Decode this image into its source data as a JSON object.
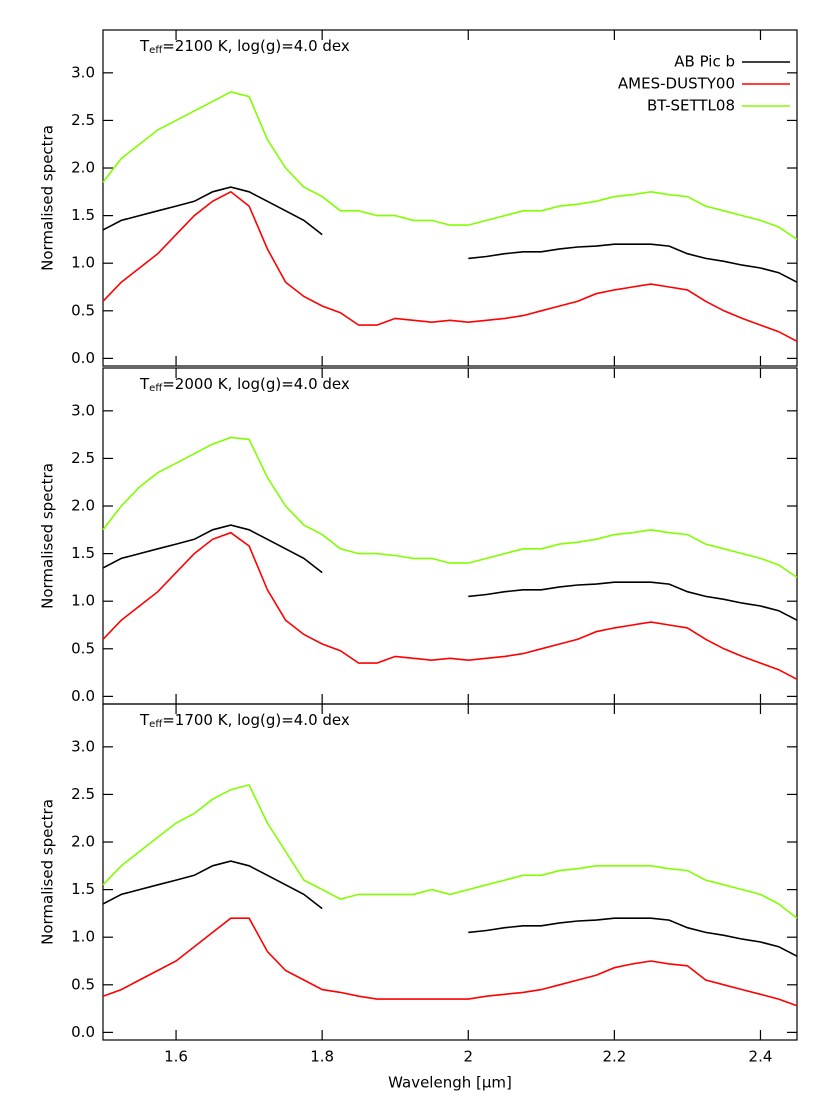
{
  "chart_data": [
    {
      "type": "line",
      "title": {
        "main": "T",
        "sub": "eff",
        "rest": "=2100 K, log(g)=4.0 dex"
      },
      "y_label": "Normalised spectra",
      "x": [
        1.5,
        1.525,
        1.55,
        1.575,
        1.6,
        1.625,
        1.65,
        1.675,
        1.7,
        1.725,
        1.75,
        1.775,
        1.8,
        1.825,
        1.85,
        1.875,
        1.9,
        1.925,
        1.95,
        1.975,
        2.0,
        2.025,
        2.05,
        2.075,
        2.1,
        2.125,
        2.15,
        2.175,
        2.2,
        2.225,
        2.25,
        2.275,
        2.3,
        2.325,
        2.35,
        2.375,
        2.4,
        2.425,
        2.45
      ],
      "series": [
        {
          "name": "AB Pic b",
          "color": "#000000",
          "values": [
            1.35,
            1.45,
            1.5,
            1.55,
            1.6,
            1.65,
            1.75,
            1.8,
            1.75,
            1.65,
            1.55,
            1.45,
            1.3,
            null,
            null,
            null,
            null,
            null,
            null,
            null,
            1.05,
            1.07,
            1.1,
            1.12,
            1.12,
            1.15,
            1.17,
            1.18,
            1.2,
            1.2,
            1.2,
            1.18,
            1.1,
            1.05,
            1.02,
            0.98,
            0.95,
            0.9,
            0.8
          ]
        },
        {
          "name": "AMES-DUSTY00",
          "color": "#ff0000",
          "values": [
            0.6,
            0.8,
            0.95,
            1.1,
            1.3,
            1.5,
            1.65,
            1.75,
            1.6,
            1.15,
            0.8,
            0.65,
            0.55,
            0.48,
            0.35,
            0.35,
            0.42,
            0.4,
            0.38,
            0.4,
            0.38,
            0.4,
            0.42,
            0.45,
            0.5,
            0.55,
            0.6,
            0.68,
            0.72,
            0.75,
            0.78,
            0.75,
            0.72,
            0.6,
            0.5,
            0.42,
            0.35,
            0.28,
            0.18
          ]
        },
        {
          "name": "BT-SETTL08",
          "color": "#80ff00",
          "values": [
            1.85,
            2.1,
            2.25,
            2.4,
            2.5,
            2.6,
            2.7,
            2.8,
            2.75,
            2.3,
            2.0,
            1.8,
            1.7,
            1.55,
            1.55,
            1.5,
            1.5,
            1.45,
            1.45,
            1.4,
            1.4,
            1.45,
            1.5,
            1.55,
            1.55,
            1.6,
            1.62,
            1.65,
            1.7,
            1.72,
            1.75,
            1.72,
            1.7,
            1.6,
            1.55,
            1.5,
            1.45,
            1.38,
            1.25
          ]
        }
      ],
      "legend": "top-right",
      "xlim": [
        1.5,
        2.45
      ],
      "ylim": [
        -0.08,
        3.45
      ],
      "xticks": [
        1.6,
        1.8,
        2.0,
        2.2,
        2.4
      ],
      "yticks": [
        {
          "value": 0,
          "label": "0.0"
        },
        {
          "value": 0.5,
          "label": "0.5"
        },
        {
          "value": 1,
          "label": "1.0"
        },
        {
          "value": 1.5,
          "label": "1.5"
        },
        {
          "value": 2,
          "label": "2.0"
        },
        {
          "value": 2.5,
          "label": "2.5"
        },
        {
          "value": 3,
          "label": "3.0"
        }
      ]
    },
    {
      "type": "line",
      "title": {
        "main": "T",
        "sub": "eff",
        "rest": "=2000 K, log(g)=4.0 dex"
      },
      "y_label": "Normalised spectra",
      "x": [
        1.5,
        1.525,
        1.55,
        1.575,
        1.6,
        1.625,
        1.65,
        1.675,
        1.7,
        1.725,
        1.75,
        1.775,
        1.8,
        1.825,
        1.85,
        1.875,
        1.9,
        1.925,
        1.95,
        1.975,
        2.0,
        2.025,
        2.05,
        2.075,
        2.1,
        2.125,
        2.15,
        2.175,
        2.2,
        2.225,
        2.25,
        2.275,
        2.3,
        2.325,
        2.35,
        2.375,
        2.4,
        2.425,
        2.45
      ],
      "series": [
        {
          "color": "#000000",
          "values": [
            1.35,
            1.45,
            1.5,
            1.55,
            1.6,
            1.65,
            1.75,
            1.8,
            1.75,
            1.65,
            1.55,
            1.45,
            1.3,
            null,
            null,
            null,
            null,
            null,
            null,
            null,
            1.05,
            1.07,
            1.1,
            1.12,
            1.12,
            1.15,
            1.17,
            1.18,
            1.2,
            1.2,
            1.2,
            1.18,
            1.1,
            1.05,
            1.02,
            0.98,
            0.95,
            0.9,
            0.8
          ]
        },
        {
          "color": "#ff0000",
          "values": [
            0.6,
            0.8,
            0.95,
            1.1,
            1.3,
            1.5,
            1.65,
            1.72,
            1.58,
            1.12,
            0.8,
            0.65,
            0.55,
            0.48,
            0.35,
            0.35,
            0.42,
            0.4,
            0.38,
            0.4,
            0.38,
            0.4,
            0.42,
            0.45,
            0.5,
            0.55,
            0.6,
            0.68,
            0.72,
            0.75,
            0.78,
            0.75,
            0.72,
            0.6,
            0.5,
            0.42,
            0.35,
            0.28,
            0.18
          ]
        },
        {
          "color": "#80ff00",
          "values": [
            1.75,
            2.0,
            2.2,
            2.35,
            2.45,
            2.55,
            2.65,
            2.72,
            2.7,
            2.3,
            2.0,
            1.8,
            1.7,
            1.55,
            1.5,
            1.5,
            1.48,
            1.45,
            1.45,
            1.4,
            1.4,
            1.45,
            1.5,
            1.55,
            1.55,
            1.6,
            1.62,
            1.65,
            1.7,
            1.72,
            1.75,
            1.72,
            1.7,
            1.6,
            1.55,
            1.5,
            1.45,
            1.38,
            1.25
          ]
        }
      ],
      "xlim": [
        1.5,
        2.45
      ],
      "ylim": [
        -0.08,
        3.45
      ],
      "xticks": [
        1.6,
        1.8,
        2.0,
        2.2,
        2.4
      ],
      "yticks": [
        {
          "value": 0,
          "label": "0.0"
        },
        {
          "value": 0.5,
          "label": "0.5"
        },
        {
          "value": 1,
          "label": "1.0"
        },
        {
          "value": 1.5,
          "label": "1.5"
        },
        {
          "value": 2,
          "label": "2.0"
        },
        {
          "value": 2.5,
          "label": "2.5"
        },
        {
          "value": 3,
          "label": "3.0"
        }
      ]
    },
    {
      "type": "line",
      "title": {
        "main": "T",
        "sub": "eff",
        "rest": "=1700 K, log(g)=4.0 dex"
      },
      "y_label": "Normalised spectra",
      "x_label": "Wavelengh [μm]",
      "x": [
        1.5,
        1.525,
        1.55,
        1.575,
        1.6,
        1.625,
        1.65,
        1.675,
        1.7,
        1.725,
        1.75,
        1.775,
        1.8,
        1.825,
        1.85,
        1.875,
        1.9,
        1.925,
        1.95,
        1.975,
        2.0,
        2.025,
        2.05,
        2.075,
        2.1,
        2.125,
        2.15,
        2.175,
        2.2,
        2.225,
        2.25,
        2.275,
        2.3,
        2.325,
        2.35,
        2.375,
        2.4,
        2.425,
        2.45
      ],
      "series": [
        {
          "color": "#000000",
          "values": [
            1.35,
            1.45,
            1.5,
            1.55,
            1.6,
            1.65,
            1.75,
            1.8,
            1.75,
            1.65,
            1.55,
            1.45,
            1.3,
            null,
            null,
            null,
            null,
            null,
            null,
            null,
            1.05,
            1.07,
            1.1,
            1.12,
            1.12,
            1.15,
            1.17,
            1.18,
            1.2,
            1.2,
            1.2,
            1.18,
            1.1,
            1.05,
            1.02,
            0.98,
            0.95,
            0.9,
            0.8
          ]
        },
        {
          "color": "#ff0000",
          "values": [
            0.38,
            0.45,
            0.55,
            0.65,
            0.75,
            0.9,
            1.05,
            1.2,
            1.2,
            0.85,
            0.65,
            0.55,
            0.45,
            0.42,
            0.38,
            0.35,
            0.35,
            0.35,
            0.35,
            0.35,
            0.35,
            0.38,
            0.4,
            0.42,
            0.45,
            0.5,
            0.55,
            0.6,
            0.68,
            0.72,
            0.75,
            0.72,
            0.7,
            0.55,
            0.5,
            0.45,
            0.4,
            0.35,
            0.28
          ]
        },
        {
          "color": "#80ff00",
          "values": [
            1.55,
            1.75,
            1.9,
            2.05,
            2.2,
            2.3,
            2.45,
            2.55,
            2.6,
            2.2,
            1.9,
            1.6,
            1.5,
            1.4,
            1.45,
            1.45,
            1.45,
            1.45,
            1.5,
            1.45,
            1.5,
            1.55,
            1.6,
            1.65,
            1.65,
            1.7,
            1.72,
            1.75,
            1.75,
            1.75,
            1.75,
            1.72,
            1.7,
            1.6,
            1.55,
            1.5,
            1.45,
            1.35,
            1.2
          ]
        }
      ],
      "xlim": [
        1.5,
        2.45
      ],
      "ylim": [
        -0.08,
        3.45
      ],
      "xticks": [
        1.6,
        1.8,
        2.0,
        2.2,
        2.4
      ],
      "yticks": [
        {
          "value": 0,
          "label": "0.0"
        },
        {
          "value": 0.5,
          "label": "0.5"
        },
        {
          "value": 1,
          "label": "1.0"
        },
        {
          "value": 1.5,
          "label": "1.5"
        },
        {
          "value": 2,
          "label": "2.0"
        },
        {
          "value": 2.5,
          "label": "2.5"
        },
        {
          "value": 3,
          "label": "3.0"
        }
      ]
    }
  ]
}
